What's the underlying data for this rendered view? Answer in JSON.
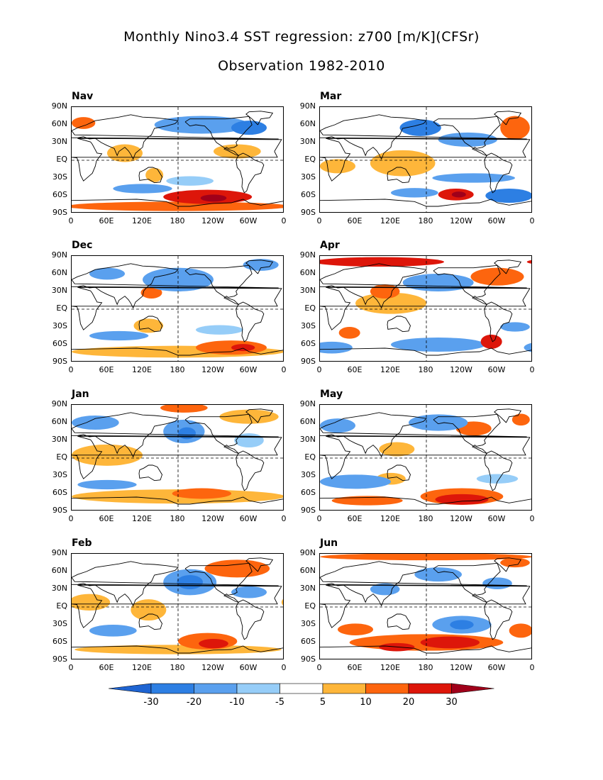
{
  "title": {
    "line1": "Monthly Nino3.4 SST regression: z700 [m/K](CFSr)",
    "line2": "Observation 1982-2010"
  },
  "lat_labels": [
    "90N",
    "60N",
    "30N",
    "EQ",
    "30S",
    "60S",
    "90S"
  ],
  "lon_labels": [
    "0",
    "60E",
    "120E",
    "180",
    "120W",
    "60W",
    "0"
  ],
  "panels": [
    {
      "id": "nov",
      "label": "Nav",
      "blobs": [
        {
          "lon": 230,
          "lat": -62,
          "rx": 75,
          "ry": 12,
          "v": 20
        },
        {
          "lon": 240,
          "lat": -64,
          "rx": 22,
          "ry": 6,
          "v": 30
        },
        {
          "lon": 180,
          "lat": -78,
          "rx": 190,
          "ry": 8,
          "v": 10
        },
        {
          "lon": 20,
          "lat": 63,
          "rx": 20,
          "ry": 10,
          "v": 10
        },
        {
          "lon": 90,
          "lat": 12,
          "rx": 30,
          "ry": 15,
          "v": 5
        },
        {
          "lon": 280,
          "lat": 15,
          "rx": 40,
          "ry": 12,
          "v": 5
        },
        {
          "lon": 140,
          "lat": -25,
          "rx": 15,
          "ry": 12,
          "v": 5
        },
        {
          "lon": 220,
          "lat": 60,
          "rx": 80,
          "ry": 15,
          "v": -10
        },
        {
          "lon": 300,
          "lat": 55,
          "rx": 30,
          "ry": 12,
          "v": -20
        },
        {
          "lon": 120,
          "lat": -48,
          "rx": 50,
          "ry": 8,
          "v": -10
        },
        {
          "lon": 200,
          "lat": -35,
          "rx": 40,
          "ry": 8,
          "v": -5
        }
      ]
    },
    {
      "id": "mar",
      "label": "Mar",
      "blobs": [
        {
          "lon": 230,
          "lat": -58,
          "rx": 30,
          "ry": 10,
          "v": 20
        },
        {
          "lon": 235,
          "lat": -58,
          "rx": 12,
          "ry": 5,
          "v": 30
        },
        {
          "lon": 140,
          "lat": -5,
          "rx": 55,
          "ry": 22,
          "v": 5
        },
        {
          "lon": 30,
          "lat": -10,
          "rx": 30,
          "ry": 12,
          "v": 5
        },
        {
          "lon": 330,
          "lat": 55,
          "rx": 25,
          "ry": 20,
          "v": 10
        },
        {
          "lon": 250,
          "lat": 35,
          "rx": 50,
          "ry": 12,
          "v": -10
        },
        {
          "lon": 170,
          "lat": 55,
          "rx": 35,
          "ry": 14,
          "v": -20
        },
        {
          "lon": 260,
          "lat": -30,
          "rx": 70,
          "ry": 8,
          "v": -10
        },
        {
          "lon": 320,
          "lat": -60,
          "rx": 40,
          "ry": 12,
          "v": -20
        },
        {
          "lon": 160,
          "lat": -55,
          "rx": 40,
          "ry": 8,
          "v": -10
        }
      ]
    },
    {
      "id": "dec",
      "label": "Dec",
      "blobs": [
        {
          "lon": 270,
          "lat": -65,
          "rx": 60,
          "ry": 12,
          "v": 10
        },
        {
          "lon": 290,
          "lat": -65,
          "rx": 20,
          "ry": 6,
          "v": 20
        },
        {
          "lon": 180,
          "lat": -72,
          "rx": 180,
          "ry": 10,
          "v": 5
        },
        {
          "lon": 130,
          "lat": -28,
          "rx": 25,
          "ry": 12,
          "v": 5
        },
        {
          "lon": 135,
          "lat": 28,
          "rx": 18,
          "ry": 10,
          "v": 10
        },
        {
          "lon": 180,
          "lat": 50,
          "rx": 60,
          "ry": 20,
          "v": -10
        },
        {
          "lon": 60,
          "lat": 60,
          "rx": 30,
          "ry": 10,
          "v": -10
        },
        {
          "lon": 320,
          "lat": 75,
          "rx": 30,
          "ry": 10,
          "v": -10
        },
        {
          "lon": 80,
          "lat": -45,
          "rx": 50,
          "ry": 8,
          "v": -10
        },
        {
          "lon": 250,
          "lat": -35,
          "rx": 40,
          "ry": 8,
          "v": -5
        }
      ]
    },
    {
      "id": "apr",
      "label": "Apr",
      "blobs": [
        {
          "lon": 100,
          "lat": 80,
          "rx": 110,
          "ry": 8,
          "v": 20
        },
        {
          "lon": 300,
          "lat": 55,
          "rx": 45,
          "ry": 15,
          "v": 10
        },
        {
          "lon": 290,
          "lat": -55,
          "rx": 18,
          "ry": 12,
          "v": 20
        },
        {
          "lon": 120,
          "lat": 10,
          "rx": 60,
          "ry": 18,
          "v": 5
        },
        {
          "lon": 50,
          "lat": -40,
          "rx": 18,
          "ry": 10,
          "v": 10
        },
        {
          "lon": 110,
          "lat": 30,
          "rx": 25,
          "ry": 12,
          "v": 10
        },
        {
          "lon": 200,
          "lat": 45,
          "rx": 60,
          "ry": 15,
          "v": -10
        },
        {
          "lon": 20,
          "lat": -65,
          "rx": 35,
          "ry": 10,
          "v": -10
        },
        {
          "lon": 200,
          "lat": -60,
          "rx": 80,
          "ry": 12,
          "v": -10
        },
        {
          "lon": 330,
          "lat": -30,
          "rx": 25,
          "ry": 8,
          "v": -10
        }
      ]
    },
    {
      "id": "jan",
      "label": "Jan",
      "blobs": [
        {
          "lon": 180,
          "lat": -65,
          "rx": 180,
          "ry": 12,
          "v": 5
        },
        {
          "lon": 220,
          "lat": -60,
          "rx": 50,
          "ry": 9,
          "v": 10
        },
        {
          "lon": 190,
          "lat": 85,
          "rx": 40,
          "ry": 8,
          "v": 10
        },
        {
          "lon": 60,
          "lat": 5,
          "rx": 60,
          "ry": 18,
          "v": 5
        },
        {
          "lon": 300,
          "lat": 70,
          "rx": 50,
          "ry": 12,
          "v": 5
        },
        {
          "lon": 190,
          "lat": 45,
          "rx": 35,
          "ry": 20,
          "v": -10
        },
        {
          "lon": 195,
          "lat": 42,
          "rx": 15,
          "ry": 10,
          "v": -20
        },
        {
          "lon": 40,
          "lat": 60,
          "rx": 40,
          "ry": 12,
          "v": -10
        },
        {
          "lon": 300,
          "lat": 30,
          "rx": 25,
          "ry": 12,
          "v": -5
        },
        {
          "lon": 60,
          "lat": -45,
          "rx": 50,
          "ry": 8,
          "v": -10
        }
      ]
    },
    {
      "id": "may",
      "label": "May",
      "blobs": [
        {
          "lon": 240,
          "lat": -65,
          "rx": 70,
          "ry": 14,
          "v": 10
        },
        {
          "lon": 240,
          "lat": -70,
          "rx": 45,
          "ry": 9,
          "v": 20
        },
        {
          "lon": 80,
          "lat": -72,
          "rx": 60,
          "ry": 8,
          "v": 10
        },
        {
          "lon": 260,
          "lat": 50,
          "rx": 30,
          "ry": 12,
          "v": 10
        },
        {
          "lon": 340,
          "lat": 65,
          "rx": 15,
          "ry": 10,
          "v": 10
        },
        {
          "lon": 130,
          "lat": 15,
          "rx": 30,
          "ry": 12,
          "v": 5
        },
        {
          "lon": 120,
          "lat": -35,
          "rx": 25,
          "ry": 10,
          "v": 5
        },
        {
          "lon": 60,
          "lat": -40,
          "rx": 60,
          "ry": 12,
          "v": -10
        },
        {
          "lon": 200,
          "lat": 60,
          "rx": 50,
          "ry": 14,
          "v": -10
        },
        {
          "lon": 300,
          "lat": -35,
          "rx": 35,
          "ry": 8,
          "v": -5
        },
        {
          "lon": 30,
          "lat": 55,
          "rx": 30,
          "ry": 12,
          "v": -10
        }
      ]
    },
    {
      "id": "feb",
      "label": "Feb",
      "blobs": [
        {
          "lon": 230,
          "lat": -58,
          "rx": 50,
          "ry": 14,
          "v": 10
        },
        {
          "lon": 240,
          "lat": -62,
          "rx": 25,
          "ry": 8,
          "v": 20
        },
        {
          "lon": 180,
          "lat": -72,
          "rx": 175,
          "ry": 8,
          "v": 5
        },
        {
          "lon": 280,
          "lat": 65,
          "rx": 55,
          "ry": 15,
          "v": 10
        },
        {
          "lon": 30,
          "lat": 8,
          "rx": 35,
          "ry": 14,
          "v": 5
        },
        {
          "lon": 130,
          "lat": -5,
          "rx": 30,
          "ry": 18,
          "v": 5
        },
        {
          "lon": 200,
          "lat": 42,
          "rx": 45,
          "ry": 22,
          "v": -10
        },
        {
          "lon": 200,
          "lat": 42,
          "rx": 22,
          "ry": 12,
          "v": -20
        },
        {
          "lon": 300,
          "lat": 25,
          "rx": 30,
          "ry": 10,
          "v": -10
        },
        {
          "lon": 70,
          "lat": -40,
          "rx": 40,
          "ry": 10,
          "v": -10
        }
      ]
    },
    {
      "id": "jun",
      "label": "Jun",
      "blobs": [
        {
          "lon": 180,
          "lat": 85,
          "rx": 180,
          "ry": 6,
          "v": 10
        },
        {
          "lon": 180,
          "lat": -60,
          "rx": 130,
          "ry": 14,
          "v": 10
        },
        {
          "lon": 220,
          "lat": -60,
          "rx": 50,
          "ry": 10,
          "v": 20
        },
        {
          "lon": 130,
          "lat": -68,
          "rx": 30,
          "ry": 7,
          "v": 20
        },
        {
          "lon": 60,
          "lat": -38,
          "rx": 30,
          "ry": 10,
          "v": 10
        },
        {
          "lon": 340,
          "lat": -40,
          "rx": 20,
          "ry": 12,
          "v": 10
        },
        {
          "lon": 330,
          "lat": 75,
          "rx": 25,
          "ry": 8,
          "v": 10
        },
        {
          "lon": 240,
          "lat": -30,
          "rx": 50,
          "ry": 15,
          "v": -10
        },
        {
          "lon": 240,
          "lat": -30,
          "rx": 20,
          "ry": 8,
          "v": -20
        },
        {
          "lon": 110,
          "lat": 30,
          "rx": 25,
          "ry": 10,
          "v": -10
        },
        {
          "lon": 200,
          "lat": 55,
          "rx": 40,
          "ry": 12,
          "v": -10
        },
        {
          "lon": 300,
          "lat": 40,
          "rx": 25,
          "ry": 10,
          "v": -10
        }
      ]
    }
  ],
  "colorbar": {
    "labels": [
      "-30",
      "-20",
      "-10",
      "-5",
      "5",
      "10",
      "20",
      "30"
    ],
    "colors": [
      "#1e64d2",
      "#2d7fe3",
      "#5aa0ee",
      "#96cdf8",
      "#ffffff",
      "#feb63a",
      "#fd650e",
      "#dd160a",
      "#a0001a"
    ]
  },
  "shading": {
    "-20": "#2d7fe3",
    "-10": "#5aa0ee",
    "-5": "#96cdf8",
    "5": "#feb63a",
    "10": "#fd650e",
    "20": "#dd160a",
    "30": "#a0001a"
  }
}
